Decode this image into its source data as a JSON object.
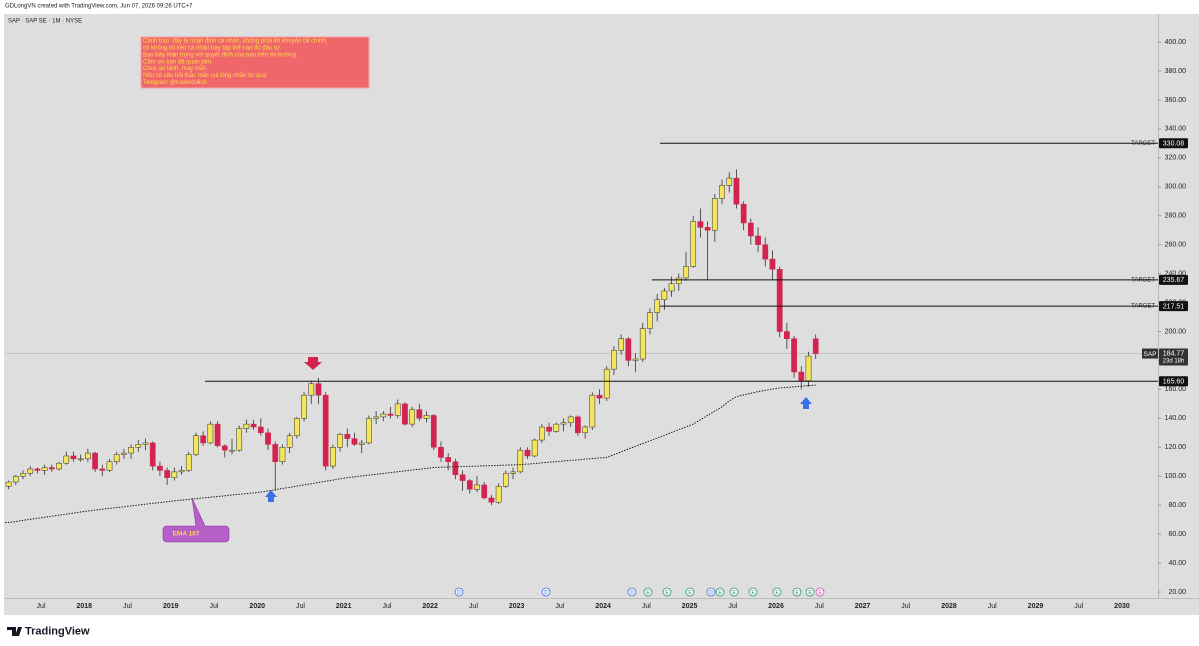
{
  "header": {
    "credit": "GDLongVN created with TradingView.com, Jun 07, 2026 09:26 UTC+7",
    "symbol": "SAP · SAP SE · 1M · NYSE"
  },
  "footer": {
    "brand": "TradingView"
  },
  "annotation": [
    "Cảnh báo: đây là nhận định cá nhân, không phải lời khuyên tài chính,",
    "tôi không lôi kéo cá nhân hay tập thể nào đó đầu tư.",
    "Bạn hãy thận trọng với quyết định của bạn trên thị trường.",
    "Cảm ơn bạn đã quan tâm.",
    "Chúc an lành, may mắn.",
    "Nếu có câu hỏi thắc mắc vui lòng nhắn tin qua",
    "Telegram @traderdulich"
  ],
  "events": [
    "D",
    "D",
    "D",
    "E",
    "E",
    "E",
    "D",
    "E",
    "E",
    "E",
    "E",
    "E",
    "E",
    "E"
  ],
  "chart_data": {
    "type": "candlestick",
    "up_color": "#f3e55e",
    "down_color": "#d4234f",
    "x": [
      "2017-02",
      "2017-03",
      "2017-04",
      "2017-05",
      "2017-06",
      "2017-07",
      "2017-08",
      "2017-09",
      "2017-10",
      "2017-11",
      "2017-12",
      "2018-01",
      "2018-02",
      "2018-03",
      "2018-04",
      "2018-05",
      "2018-06",
      "2018-07",
      "2018-08",
      "2018-09",
      "2018-10",
      "2018-11",
      "2018-12",
      "2019-01",
      "2019-02",
      "2019-03",
      "2019-04",
      "2019-05",
      "2019-06",
      "2019-07",
      "2019-08",
      "2019-09",
      "2019-10",
      "2019-11",
      "2019-12",
      "2020-01",
      "2020-02",
      "2020-03",
      "2020-04",
      "2020-05",
      "2020-06",
      "2020-07",
      "2020-08",
      "2020-09",
      "2020-10",
      "2020-11",
      "2020-12",
      "2021-01",
      "2021-02",
      "2021-03",
      "2021-04",
      "2021-05",
      "2021-06",
      "2021-07",
      "2021-08",
      "2021-09",
      "2021-10",
      "2021-11",
      "2021-12",
      "2022-01",
      "2022-02",
      "2022-03",
      "2022-04",
      "2022-05",
      "2022-06",
      "2022-07",
      "2022-08",
      "2022-09",
      "2022-10",
      "2022-11",
      "2022-12",
      "2023-01",
      "2023-02",
      "2023-03",
      "2023-04",
      "2023-05",
      "2023-06",
      "2023-07",
      "2023-08",
      "2023-09",
      "2023-10",
      "2023-11",
      "2023-12",
      "2024-01",
      "2024-02",
      "2024-03",
      "2024-04",
      "2024-05",
      "2024-06",
      "2024-07",
      "2024-08",
      "2024-09",
      "2024-10",
      "2024-11",
      "2024-12",
      "2025-01",
      "2025-02",
      "2025-03",
      "2025-04",
      "2025-05",
      "2025-06",
      "2025-07",
      "2025-08",
      "2025-09",
      "2025-10",
      "2025-11",
      "2025-12",
      "2026-01",
      "2026-02",
      "2026-03",
      "2026-04",
      "2026-05",
      "2026-06"
    ],
    "open": [
      93,
      96,
      100,
      102,
      105,
      104,
      106,
      105,
      109,
      114,
      112,
      112,
      116,
      105,
      104,
      110,
      115,
      116,
      120,
      122,
      123,
      107,
      104,
      99,
      103,
      104,
      115,
      128,
      123,
      136,
      121,
      118,
      118,
      133,
      136,
      134,
      130,
      122,
      110,
      120,
      128,
      140,
      156,
      164,
      156,
      107,
      120,
      129,
      126,
      122,
      123,
      140,
      141,
      143,
      142,
      150,
      136,
      146,
      140,
      142,
      120,
      113,
      110,
      101,
      97,
      91,
      94,
      85,
      82,
      93,
      102,
      103,
      118,
      114,
      125,
      134,
      131,
      136,
      137,
      141,
      130,
      134,
      156,
      154,
      174,
      187,
      195,
      180,
      181,
      202,
      213,
      222,
      228,
      233,
      237,
      245,
      276,
      272,
      270,
      292,
      301,
      306,
      288,
      275,
      266,
      260,
      250,
      243,
      200,
      195,
      172,
      166,
      195
    ],
    "high": [
      97,
      101,
      104,
      107,
      106,
      108,
      108,
      110,
      117,
      117,
      115,
      119,
      117,
      108,
      112,
      117,
      119,
      122,
      125,
      126,
      124,
      110,
      106,
      106,
      107,
      117,
      130,
      131,
      138,
      138,
      122,
      126,
      135,
      139,
      139,
      140,
      133,
      124,
      122,
      130,
      141,
      158,
      166,
      168,
      158,
      122,
      130,
      133,
      130,
      125,
      142,
      145,
      145,
      148,
      153,
      151,
      148,
      150,
      145,
      143,
      124,
      116,
      112,
      104,
      98,
      100,
      96,
      87,
      95,
      104,
      106,
      120,
      120,
      126,
      136,
      137,
      137,
      140,
      142,
      142,
      135,
      158,
      160,
      176,
      190,
      198,
      196,
      185,
      206,
      216,
      226,
      230,
      238,
      240,
      255,
      280,
      285,
      276,
      295,
      305,
      310,
      312,
      290,
      278,
      272,
      265,
      256,
      245,
      206,
      197,
      176,
      186,
      198
    ],
    "low": [
      91,
      94,
      98,
      100,
      102,
      101,
      103,
      104,
      108,
      110,
      110,
      110,
      103,
      100,
      103,
      108,
      112,
      112,
      117,
      118,
      104,
      100,
      94,
      97,
      101,
      103,
      114,
      121,
      122,
      120,
      113,
      115,
      117,
      130,
      132,
      128,
      118,
      90,
      108,
      116,
      126,
      138,
      150,
      150,
      104,
      105,
      117,
      120,
      121,
      116,
      122,
      136,
      138,
      140,
      140,
      135,
      134,
      138,
      137,
      118,
      110,
      104,
      98,
      90,
      88,
      89,
      84,
      80,
      81,
      92,
      98,
      102,
      112,
      113,
      123,
      128,
      130,
      131,
      134,
      128,
      126,
      132,
      150,
      152,
      170,
      184,
      176,
      172,
      179,
      198,
      207,
      215,
      224,
      228,
      235,
      244,
      265,
      236,
      262,
      288,
      296,
      285,
      270,
      260,
      255,
      245,
      236,
      196,
      188,
      168,
      160,
      162,
      181
    ],
    "close": [
      96,
      100,
      102,
      105,
      104,
      106,
      105,
      109,
      114,
      112,
      112,
      116,
      105,
      104,
      110,
      115,
      116,
      120,
      122,
      123,
      107,
      104,
      99,
      103,
      104,
      115,
      128,
      123,
      136,
      121,
      118,
      118,
      133,
      136,
      134,
      130,
      122,
      110,
      120,
      128,
      140,
      156,
      164,
      156,
      107,
      120,
      129,
      126,
      122,
      123,
      140,
      141,
      143,
      142,
      150,
      136,
      146,
      140,
      142,
      120,
      113,
      110,
      101,
      97,
      91,
      94,
      85,
      82,
      93,
      102,
      103,
      118,
      114,
      125,
      134,
      131,
      136,
      137,
      141,
      130,
      134,
      156,
      154,
      174,
      187,
      195,
      180,
      181,
      202,
      213,
      222,
      228,
      233,
      237,
      245,
      276,
      272,
      270,
      292,
      301,
      306,
      288,
      275,
      266,
      260,
      250,
      243,
      200,
      195,
      172,
      166,
      183,
      184.77
    ],
    "ema": {
      "name": "EMA 107",
      "color": "#111111",
      "values": [
        68,
        68.7,
        69.5,
        70.2,
        70.9,
        71.6,
        72.4,
        73.1,
        73.8,
        74.5,
        75.3,
        76,
        76.6,
        77.2,
        77.8,
        78.3,
        78.9,
        79.5,
        80.1,
        80.7,
        81.3,
        81.8,
        82.4,
        83,
        83.5,
        84,
        84.5,
        85,
        85.5,
        86,
        86.5,
        87,
        87.5,
        88,
        88.5,
        89,
        89.8,
        90.7,
        91.5,
        92.3,
        93.2,
        94,
        94.8,
        95.7,
        96.5,
        97.3,
        98.2,
        99,
        99.6,
        100.2,
        100.8,
        101.3,
        101.9,
        102.5,
        103.1,
        103.7,
        104.3,
        104.8,
        105.4,
        106,
        106.2,
        106.3,
        106.5,
        106.7,
        106.8,
        107,
        107.2,
        107.3,
        107.5,
        107.7,
        107.8,
        108,
        108.4,
        108.8,
        109.3,
        109.7,
        110.1,
        110.5,
        110.9,
        111.3,
        111.8,
        112.2,
        112.6,
        113,
        114.9,
        116.8,
        118.8,
        120.7,
        122.6,
        124.5,
        126.4,
        128.3,
        130.3,
        132.2,
        134.1,
        136,
        139,
        142,
        145,
        148,
        152,
        155,
        156.2,
        157.3,
        158.5,
        159.3,
        160.2,
        161,
        161.4,
        161.8,
        162.2,
        162.6,
        163
      ]
    },
    "levels": [
      {
        "price": 330.08,
        "tag": "TARGET"
      },
      {
        "price": 235.67,
        "tag": "TARGET"
      },
      {
        "price": 217.51,
        "tag": "TARGET"
      },
      {
        "price": {
          "value": 165.6,
          "label": "165.60"
        }
      }
    ],
    "last": {
      "symbol": "SAP",
      "price": 184.77,
      "countdown": "23d 18h"
    },
    "xlim": [
      "2017-02",
      "2030-06"
    ],
    "xticks": [
      {
        "value": "2017-07",
        "label": "Jul"
      },
      {
        "value": "2018-01",
        "label": "2018"
      },
      {
        "value": "2018-07",
        "label": "Jul"
      },
      {
        "value": "2019-01",
        "label": "2019"
      },
      {
        "value": "2019-07",
        "label": "Jul"
      },
      {
        "value": "2020-01",
        "label": "2020"
      },
      {
        "value": "2020-07",
        "label": "Jul"
      },
      {
        "value": "2021-01",
        "label": "2021"
      },
      {
        "value": "2021-07",
        "label": "Jul"
      },
      {
        "value": "2022-01",
        "label": "2022"
      },
      {
        "value": "2022-07",
        "label": "Jul"
      },
      {
        "value": "2023-01",
        "label": "2023"
      },
      {
        "value": "2023-07",
        "label": "Jul"
      },
      {
        "value": "2024-01",
        "label": "2024"
      },
      {
        "value": "2024-07",
        "label": "Jul"
      },
      {
        "value": "2025-01",
        "label": "2025"
      },
      {
        "value": "2025-07",
        "label": "Jul"
      },
      {
        "value": "2026-01",
        "label": "2026"
      },
      {
        "value": "2026-07",
        "label": "Jul"
      },
      {
        "value": "2027-01",
        "label": "2027"
      },
      {
        "value": "2027-07",
        "label": "Jul"
      },
      {
        "value": "2028-01",
        "label": "2028"
      },
      {
        "value": "2028-07",
        "label": "Jul"
      },
      {
        "value": "2029-01",
        "label": "2029"
      },
      {
        "value": "2029-07",
        "label": "Jul"
      },
      {
        "value": "2030-01",
        "label": "2030"
      }
    ],
    "ylim": [
      15.85,
      419.4
    ],
    "yticks": [
      {
        "value": 20,
        "label": "20.00"
      },
      {
        "value": 40,
        "label": "40.00"
      },
      {
        "value": 60,
        "label": "60.00"
      },
      {
        "value": 80,
        "label": "80.00"
      },
      {
        "value": 100,
        "label": "100.00"
      },
      {
        "value": 120,
        "label": "120.00"
      },
      {
        "value": 140,
        "label": "140.00"
      },
      {
        "value": 160,
        "label": "160.00"
      },
      {
        "value": 180,
        "label": "180.00"
      },
      {
        "value": 200,
        "label": "200.00"
      },
      {
        "value": 220,
        "label": "220.00"
      },
      {
        "value": 240,
        "label": "240.00"
      },
      {
        "value": 260,
        "label": "260.00"
      },
      {
        "value": 280,
        "label": "280.00"
      },
      {
        "value": 300,
        "label": "300.00"
      },
      {
        "value": 320,
        "label": "320.00"
      },
      {
        "value": 340,
        "label": "340.00"
      },
      {
        "value": 360,
        "label": "360.00"
      },
      {
        "value": 380,
        "label": "380.00"
      },
      {
        "value": 400,
        "label": "400.00"
      }
    ],
    "grid": false
  }
}
